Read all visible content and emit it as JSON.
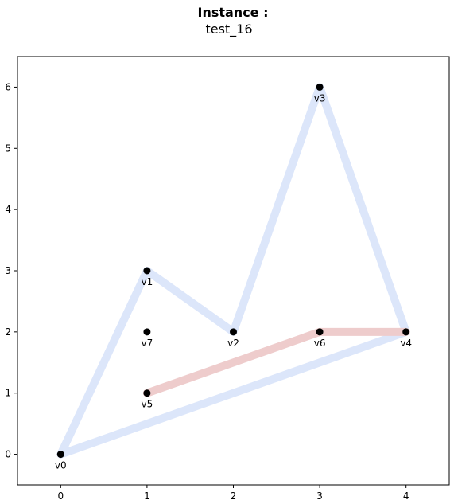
{
  "chart_data": {
    "type": "scatter",
    "title_bold": "Instance :",
    "title_sub": "test_16",
    "xlabel": "",
    "ylabel": "",
    "xlim": [
      -0.5,
      4.5
    ],
    "ylim": [
      -0.5,
      6.5
    ],
    "xticks": [
      0,
      1,
      2,
      3,
      4
    ],
    "yticks": [
      0,
      1,
      2,
      3,
      4,
      5,
      6
    ],
    "grid": false,
    "points": [
      {
        "label": "v0",
        "x": 0,
        "y": 0
      },
      {
        "label": "v1",
        "x": 1,
        "y": 3
      },
      {
        "label": "v2",
        "x": 2,
        "y": 2
      },
      {
        "label": "v3",
        "x": 3,
        "y": 6
      },
      {
        "label": "v4",
        "x": 4,
        "y": 2
      },
      {
        "label": "v5",
        "x": 1,
        "y": 1
      },
      {
        "label": "v6",
        "x": 3,
        "y": 2
      },
      {
        "label": "v7",
        "x": 1,
        "y": 2
      }
    ],
    "paths": [
      {
        "color": "#dce6fa",
        "vertices": [
          "v0",
          "v1",
          "v2",
          "v3",
          "v4",
          "v0"
        ]
      },
      {
        "color": "#eecccc",
        "vertices": [
          "v5",
          "v6",
          "v4"
        ]
      }
    ],
    "point_color": "#000000"
  }
}
